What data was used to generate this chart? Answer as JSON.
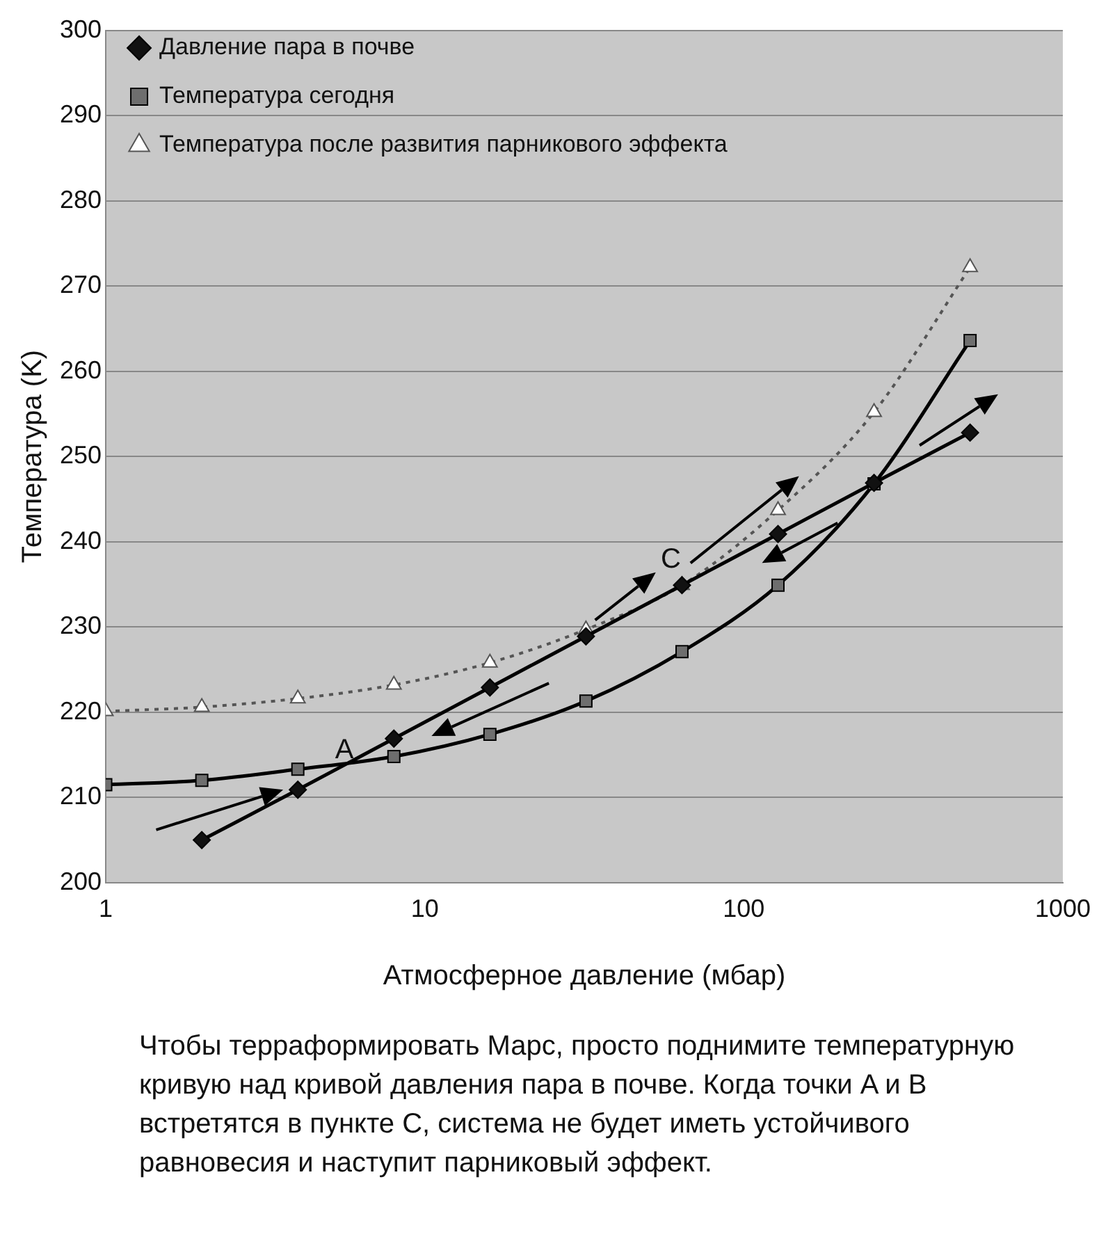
{
  "chart_data": {
    "type": "line",
    "xlabel": "Атмосферное давление (мбар)",
    "ylabel": "Температура (K)",
    "xlim": [
      1,
      1000
    ],
    "xticks": [
      1,
      10,
      100,
      1000
    ],
    "ylim": [
      200,
      300
    ],
    "yticks": [
      200,
      210,
      220,
      230,
      240,
      250,
      260,
      270,
      280,
      290,
      300
    ],
    "log": "x",
    "grid": "y",
    "legend": "top left",
    "series": [
      {
        "name": "Давление пара в почве",
        "color": "#111111",
        "marker": "diamond",
        "line_style": "solid",
        "x": [
          2,
          4,
          8,
          16,
          32,
          64,
          128,
          256,
          512
        ],
        "values": [
          205,
          210.9,
          216.9,
          222.9,
          228.9,
          234.9,
          240.9,
          246.9,
          252.8
        ]
      },
      {
        "name": "Температура сегодня",
        "color": "#6e6e6e",
        "marker": "square",
        "line_style": "solid",
        "x": [
          1,
          2,
          4,
          8,
          16,
          32,
          64,
          128,
          256,
          512
        ],
        "values": [
          211.5,
          212,
          213.3,
          214.8,
          217.4,
          221.3,
          227.1,
          234.9,
          246.8,
          263.6
        ]
      },
      {
        "name": "Температура после развития парникового эффекта",
        "color": "#555555",
        "marker": "triangle",
        "line_style": "dotted",
        "x": [
          1,
          2,
          4,
          8,
          16,
          32,
          64,
          128,
          256,
          512
        ],
        "values": [
          220.1,
          220.6,
          221.6,
          223.2,
          225.8,
          229.7,
          234.9,
          243.7,
          255.2,
          272.2
        ]
      }
    ],
    "annotations": [
      "A",
      {
        "text": "C",
        "x": 64,
        "y": 234.9
      },
      "Чтобы терраформировать Марс, просто поднимите температурную кривую над кривой давления пара в почве. Когда точки A и B встретятся в пункте C, система не будет иметь устойчивого равновесия и наступит парниковый эффект."
    ]
  }
}
